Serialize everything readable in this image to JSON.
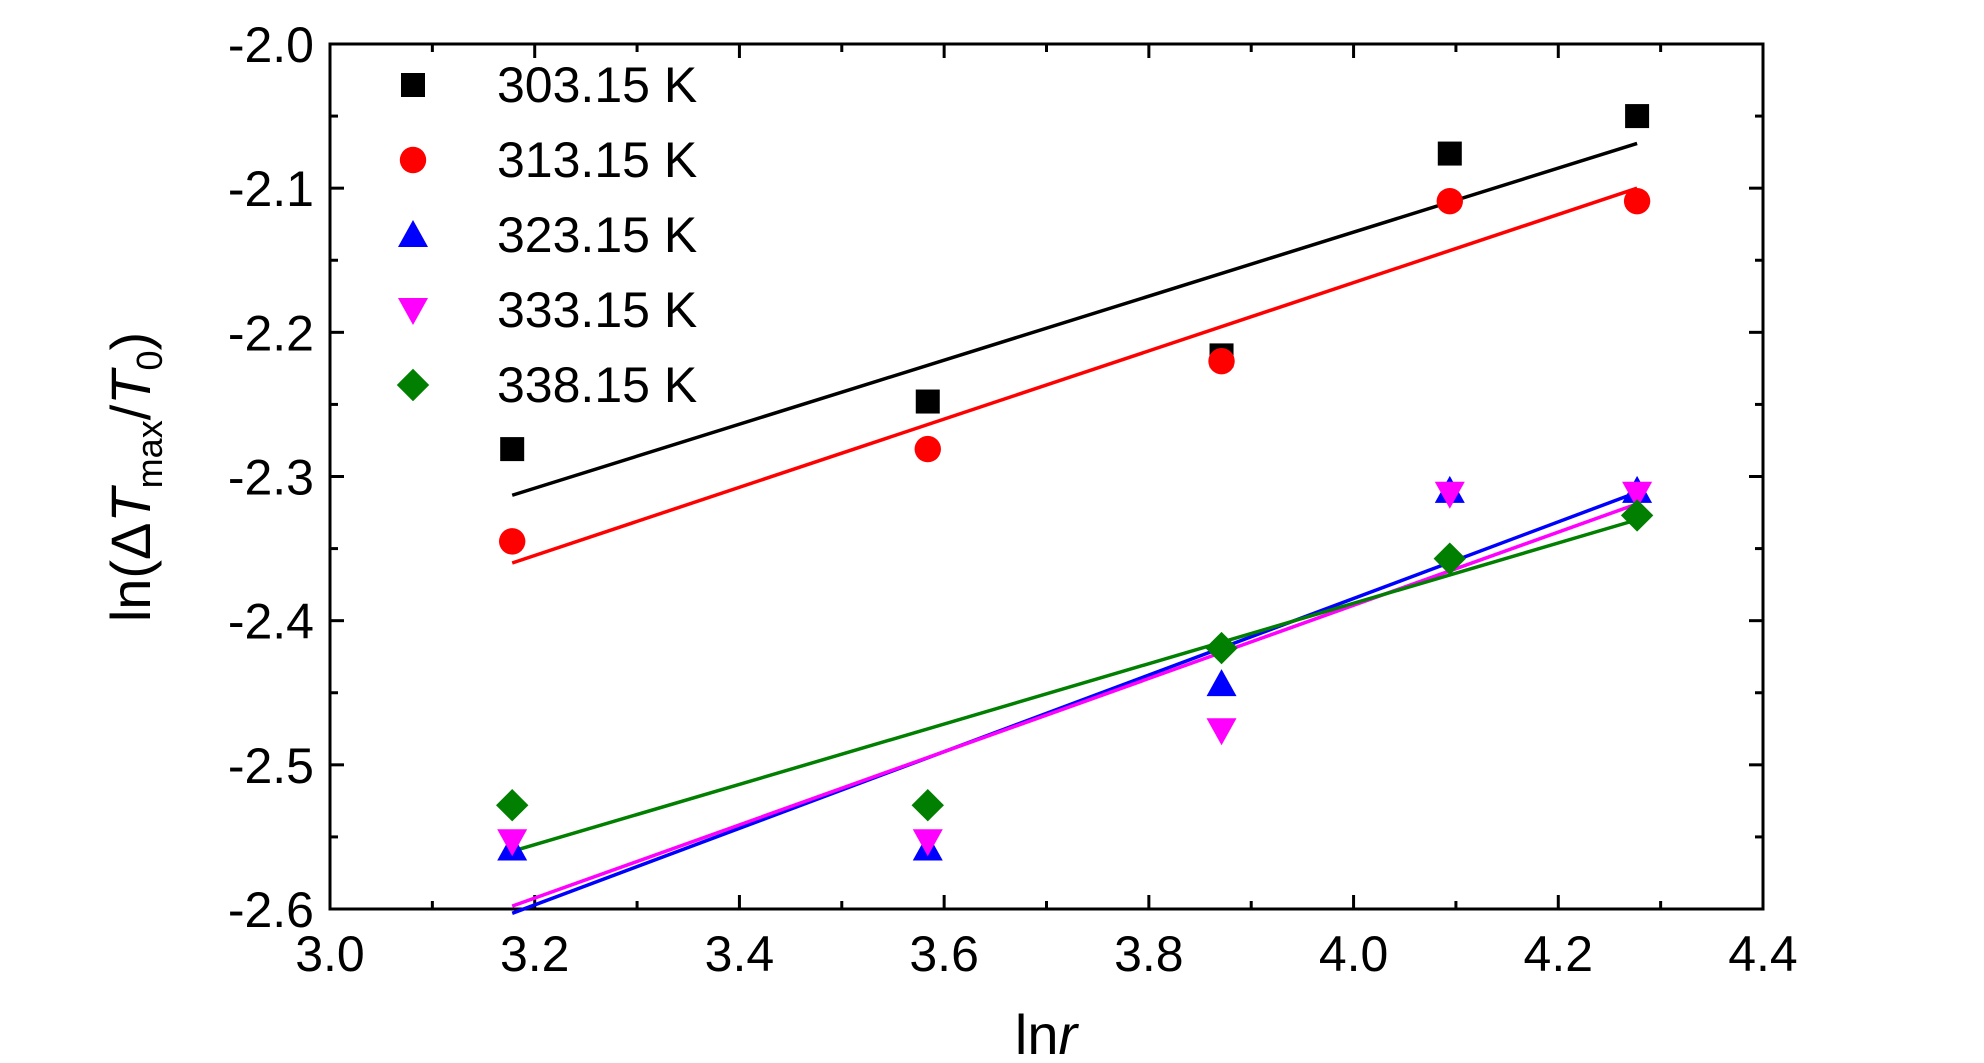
{
  "chart_data": {
    "type": "scatter",
    "xlabel": {
      "prefix": "ln",
      "var": "r"
    },
    "ylabel": {
      "prefix": "ln(",
      "delta": "Δ",
      "T1": "T",
      "sub": "max",
      "slash": "/",
      "T2": "T",
      "sub2": "0",
      "close": ")"
    },
    "xlim": [
      3.0,
      4.4
    ],
    "ylim": [
      -2.6,
      -2.0
    ],
    "xticks": [
      "3.0",
      "3.2",
      "3.4",
      "3.6",
      "3.8",
      "4.0",
      "4.2",
      "4.4"
    ],
    "yticks": [
      "-2.0",
      "-2.1",
      "-2.2",
      "-2.3",
      "-2.4",
      "-2.5",
      "-2.6"
    ],
    "grid": false,
    "legend_position": "top-left",
    "series": [
      {
        "name": "303.15 K",
        "marker": "square",
        "color": "#000000",
        "x": [
          3.178,
          3.584,
          3.871,
          4.094,
          4.277
        ],
        "y": [
          -2.281,
          -2.248,
          -2.216,
          -2.076,
          -2.05
        ],
        "fit": [
          [
            3.178,
            -2.313
          ],
          [
            4.277,
            -2.069
          ]
        ]
      },
      {
        "name": "313.15 K",
        "marker": "circle",
        "color": "#ff0000",
        "x": [
          3.178,
          3.584,
          3.871,
          4.094,
          4.277
        ],
        "y": [
          -2.345,
          -2.281,
          -2.22,
          -2.109,
          -2.109
        ],
        "fit": [
          [
            3.178,
            -2.36
          ],
          [
            4.277,
            -2.1
          ]
        ]
      },
      {
        "name": "323.15 K",
        "marker": "triangle-up",
        "color": "#0000ff",
        "x": [
          3.178,
          3.584,
          3.871,
          4.094,
          4.277
        ],
        "y": [
          -2.558,
          -2.558,
          -2.444,
          -2.31,
          -2.31
        ],
        "fit": [
          [
            3.178,
            -2.603
          ],
          [
            4.277,
            -2.311
          ]
        ]
      },
      {
        "name": "333.15 K",
        "marker": "triangle-down",
        "color": "#ff00ff",
        "x": [
          3.178,
          3.584,
          3.871,
          4.094,
          4.277
        ],
        "y": [
          -2.553,
          -2.553,
          -2.476,
          -2.312,
          -2.312
        ],
        "fit": [
          [
            3.178,
            -2.598
          ],
          [
            4.277,
            -2.319
          ]
        ]
      },
      {
        "name": "338.15 K",
        "marker": "diamond",
        "color": "#007f00",
        "x": [
          3.178,
          3.584,
          3.871,
          4.094,
          4.277
        ],
        "y": [
          -2.528,
          -2.528,
          -2.419,
          -2.357,
          -2.327
        ],
        "fit": [
          [
            3.178,
            -2.56
          ],
          [
            4.277,
            -2.33
          ]
        ]
      }
    ]
  }
}
